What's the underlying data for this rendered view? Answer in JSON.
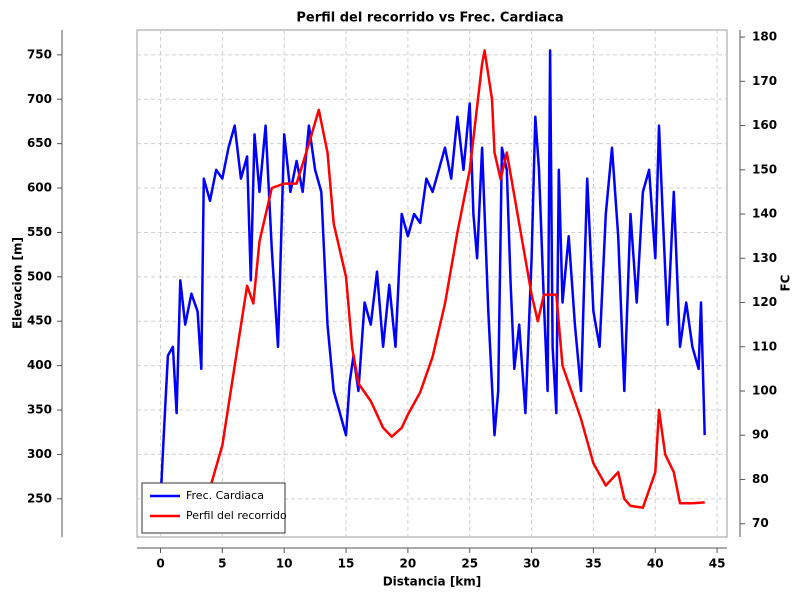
{
  "chart_data": {
    "type": "line",
    "title": "Perfil del recorrido vs Frec. Cardiaca",
    "xlabel": "Distancia [km]",
    "ylabel": "Elevacion [m]",
    "y2label": "FC",
    "xlim": [
      -1.9,
      45.8
    ],
    "xticks": [
      0,
      5,
      10,
      15,
      20,
      25,
      30,
      35,
      40,
      45
    ],
    "ylim": [
      207,
      778
    ],
    "yticks": [
      250,
      300,
      350,
      400,
      450,
      500,
      550,
      600,
      650,
      700,
      750
    ],
    "y2lim": [
      67,
      181.6
    ],
    "y2ticks": [
      70,
      80,
      90,
      100,
      110,
      120,
      130,
      140,
      150,
      160,
      170,
      180
    ],
    "grid": true,
    "legend": "lower left",
    "series": [
      {
        "name": "Frec. Cardiaca",
        "color": "#0000ff",
        "axis": "y2",
        "x": [
          0,
          0.3,
          0.6,
          1,
          1.3,
          1.6,
          2,
          2.5,
          3,
          3.3,
          3.5,
          4,
          4.5,
          5,
          5.5,
          6,
          6.5,
          7,
          7.3,
          7.6,
          8,
          8.5,
          9,
          9.5,
          10,
          10.5,
          11,
          11.5,
          12,
          12.5,
          13,
          13.5,
          14,
          14.5,
          15,
          15.3,
          15.6,
          16,
          16.5,
          17,
          17.5,
          18,
          18.5,
          19,
          19.5,
          20,
          20.5,
          21,
          21.5,
          22,
          22.5,
          23,
          23.5,
          24,
          24.5,
          25,
          25.3,
          25.6,
          26,
          26.5,
          27,
          27.3,
          27.6,
          28,
          28.3,
          28.6,
          29,
          29.5,
          30,
          30.3,
          30.6,
          31,
          31.3,
          31.5,
          31.7,
          32,
          32.2,
          32.5,
          33,
          33.5,
          34,
          34.5,
          35,
          35.5,
          36,
          36.5,
          37,
          37.5,
          38,
          38.5,
          39,
          39.5,
          40,
          40.3,
          40.6,
          41,
          41.5,
          42,
          42.5,
          43,
          43.5,
          43.7,
          44
        ],
        "values": [
          75,
          92,
          108,
          110,
          95,
          125,
          115,
          122,
          118,
          105,
          148,
          143,
          150,
          148,
          155,
          160,
          148,
          153,
          125,
          158,
          145,
          160,
          132,
          110,
          158,
          145,
          152,
          145,
          160,
          150,
          145,
          115,
          100,
          95,
          90,
          102,
          108,
          100,
          120,
          115,
          127,
          110,
          124,
          110,
          140,
          135,
          140,
          138,
          148,
          145,
          150,
          155,
          148,
          162,
          150,
          165,
          140,
          130,
          155,
          118,
          90,
          100,
          155,
          150,
          125,
          105,
          115,
          95,
          130,
          162,
          150,
          120,
          100,
          177,
          110,
          95,
          150,
          120,
          135,
          115,
          100,
          148,
          118,
          110,
          140,
          155,
          135,
          100,
          140,
          120,
          145,
          150,
          130,
          160,
          140,
          115,
          145,
          110,
          120,
          110,
          105,
          120,
          90
        ]
      },
      {
        "name": "Perfil del recorrido",
        "color": "#ff0000",
        "x": [
          0,
          1,
          2,
          3,
          4,
          5,
          6,
          7,
          7.5,
          8,
          9,
          10,
          11,
          12,
          12.8,
          13.5,
          14,
          15,
          15.5,
          16,
          17,
          18,
          18.7,
          19.5,
          20,
          21,
          22,
          23,
          24,
          25,
          25.5,
          26,
          26.2,
          26.8,
          27,
          27.5,
          28,
          29,
          30,
          30.5,
          31,
          32,
          32.5,
          33,
          34,
          35,
          36,
          37,
          37.5,
          38,
          39,
          40,
          40.3,
          40.8,
          41.5,
          42,
          43,
          44
        ],
        "values": [
          225,
          228,
          232,
          240,
          262,
          310,
          400,
          490,
          470,
          540,
          600,
          605,
          605,
          650,
          688,
          640,
          560,
          500,
          420,
          380,
          360,
          330,
          320,
          330,
          345,
          370,
          410,
          470,
          550,
          620,
          680,
          740,
          755,
          700,
          640,
          610,
          640,
          560,
          480,
          450,
          480,
          480,
          400,
          380,
          340,
          290,
          265,
          280,
          250,
          242,
          240,
          280,
          350,
          300,
          280,
          245,
          245,
          246
        ]
      }
    ]
  }
}
